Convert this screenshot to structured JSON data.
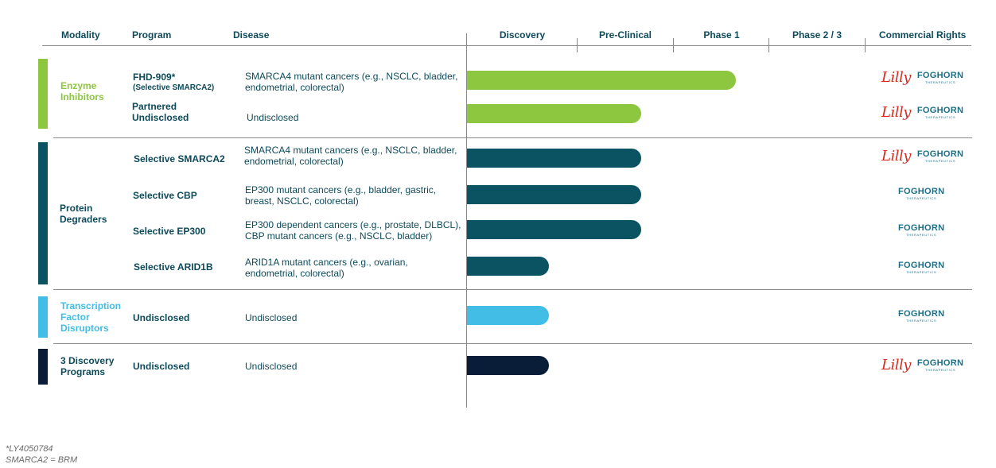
{
  "header": {
    "modality": "Modality",
    "program": "Program",
    "disease": "Disease",
    "phases": [
      "Discovery",
      "Pre-Clinical",
      "Phase 1",
      "Phase 2 / 3"
    ],
    "rights": "Commercial Rights"
  },
  "partners": {
    "lilly": "Lilly",
    "foghorn": "FOGHORN",
    "foghorn_sub": "THERAPEUTICS"
  },
  "colors": {
    "enzyme": "#8dc63f",
    "degrader": "#0b5263",
    "transcription": "#41bde6",
    "discovery": "#0a1d38",
    "text": "#0d4a5a",
    "lilly_red": "#d52b1e"
  },
  "groups": [
    {
      "modality": "Enzyme Inhibitors",
      "color": "#8dc63f",
      "modality_color": "#8dc63f",
      "programs": [
        {
          "program": "FHD-909*",
          "program_sub": "(Selective SMARCA2)",
          "disease_1": "SMARCA4 mutant cancers (e.g., NSCLC, bladder,",
          "disease_2": "endometrial, colorectal)",
          "progress": 2.7,
          "partner": "lilly_foghorn"
        },
        {
          "program": "Partnered",
          "program_2": "Undisclosed",
          "disease_1": "Undisclosed",
          "disease_2": "",
          "progress": 1.75,
          "partner": "lilly_foghorn"
        }
      ]
    },
    {
      "modality": "Protein Degraders",
      "color": "#0b5263",
      "modality_color": "#0d4a5a",
      "programs": [
        {
          "program": "Selective SMARCA2",
          "disease_1": "SMARCA4 mutant cancers (e.g., NSCLC, bladder,",
          "disease_2": "endometrial, colorectal)",
          "progress": 1.75,
          "partner": "lilly_foghorn"
        },
        {
          "program": "Selective CBP",
          "disease_1": "EP300 mutant cancers (e.g., bladder, gastric,",
          "disease_2": "breast, NSCLC, colorectal)",
          "progress": 1.75,
          "partner": "foghorn"
        },
        {
          "program": "Selective EP300",
          "disease_1": "EP300 dependent cancers (e.g., prostate, DLBCL),",
          "disease_2": "CBP mutant cancers (e.g., NSCLC, bladder)",
          "progress": 1.75,
          "partner": "foghorn"
        },
        {
          "program": "Selective ARID1B",
          "disease_1": "ARID1A mutant cancers (e.g., ovarian,",
          "disease_2": "endometrial, colorectal)",
          "progress": 0.82,
          "partner": "foghorn"
        }
      ]
    },
    {
      "modality": "Transcription Factor Disruptors",
      "color": "#41bde6",
      "modality_color": "#41bde6",
      "programs": [
        {
          "program": "Undisclosed",
          "disease_1": "Undisclosed",
          "disease_2": "",
          "progress": 0.82,
          "partner": "foghorn"
        }
      ]
    },
    {
      "modality": "3 Discovery Programs",
      "color": "#0a1d38",
      "modality_color": "#0d4a5a",
      "programs": [
        {
          "program": "Undisclosed",
          "disease_1": "Undisclosed",
          "disease_2": "",
          "progress": 0.82,
          "partner": "lilly_foghorn"
        }
      ]
    }
  ],
  "chart_data": {
    "type": "bar",
    "orientation": "horizontal",
    "title": "",
    "categories": [
      "FHD-909* (Selective SMARCA2)",
      "Partnered Undisclosed",
      "Selective SMARCA2",
      "Selective CBP",
      "Selective EP300",
      "Selective ARID1B",
      "Undisclosed (Transcription Factor Disruptors)",
      "3 Discovery Programs Undisclosed"
    ],
    "phase_labels": [
      "Discovery",
      "Pre-Clinical",
      "Phase 1",
      "Phase 2 / 3"
    ],
    "values": [
      2.7,
      1.75,
      1.75,
      1.75,
      1.75,
      0.82,
      0.82,
      0.82
    ],
    "xlim": [
      0,
      4
    ],
    "unit": "phases completed"
  },
  "footnotes": [
    "*LY4050784",
    "SMARCA2 = BRM"
  ]
}
